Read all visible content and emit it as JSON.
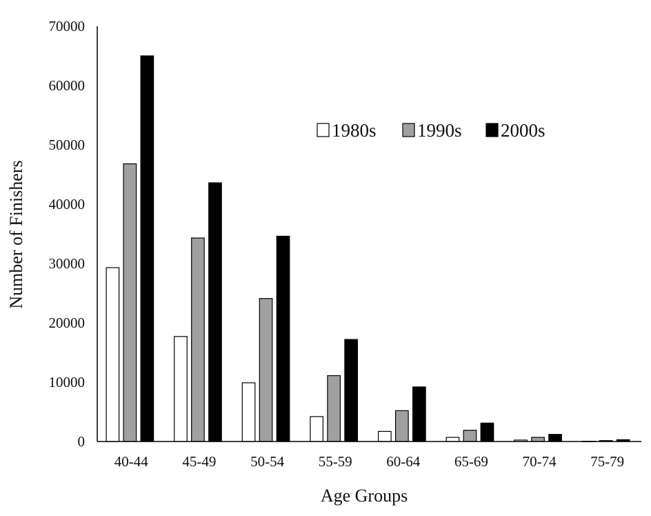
{
  "chart_data": {
    "type": "bar",
    "xlabel": "Age Groups",
    "ylabel": "Number of Finishers",
    "ylim": [
      0,
      70000
    ],
    "yticks": [
      0,
      10000,
      20000,
      30000,
      40000,
      50000,
      60000,
      70000
    ],
    "grid": false,
    "legend_position": "top-right",
    "categories": [
      "40-44",
      "45-49",
      "50-54",
      "55-59",
      "60-64",
      "65-69",
      "70-74",
      "75-79"
    ],
    "series": [
      {
        "name": "1980s",
        "color": "#ffffff",
        "values": [
          29300,
          17700,
          9900,
          4200,
          1700,
          700,
          250,
          50
        ]
      },
      {
        "name": "1990s",
        "color": "#a0a0a0",
        "values": [
          46800,
          34300,
          24100,
          11100,
          5200,
          1900,
          700,
          150
        ]
      },
      {
        "name": "2000s",
        "color": "#000000",
        "values": [
          65000,
          43600,
          34600,
          17200,
          9200,
          3100,
          1200,
          300
        ]
      }
    ]
  }
}
